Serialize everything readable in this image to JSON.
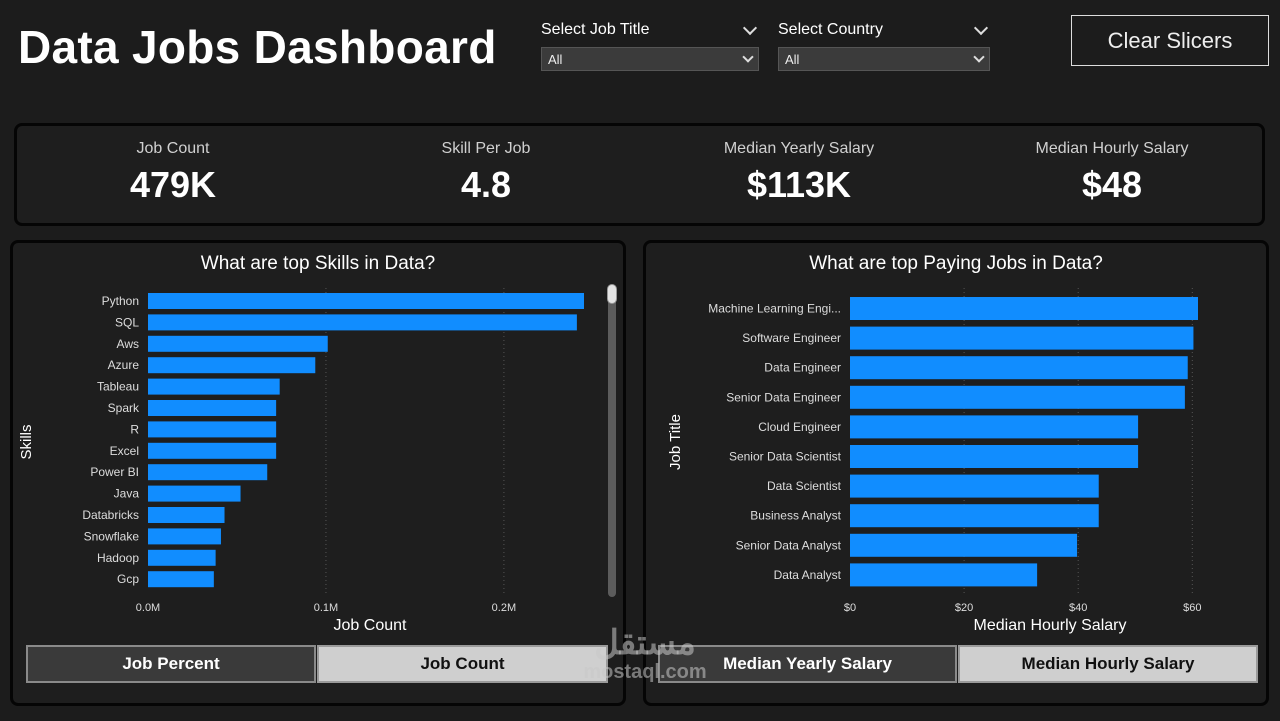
{
  "header": {
    "title": "Data Jobs Dashboard",
    "clear_label": "Clear Slicers"
  },
  "slicers": [
    {
      "label": "Select Job Title",
      "value": "All"
    },
    {
      "label": "Select Country",
      "value": "All"
    }
  ],
  "kpis": [
    {
      "label": "Job Count",
      "value": "479K"
    },
    {
      "label": "Skill Per Job",
      "value": "4.8"
    },
    {
      "label": "Median Yearly Salary",
      "value": "$113K"
    },
    {
      "label": "Median Hourly Salary",
      "value": "$48"
    }
  ],
  "colors": {
    "bar": "#118dff",
    "background": "#1c1c1c"
  },
  "chart_data": [
    {
      "type": "bar",
      "orientation": "horizontal",
      "title": "What are top Skills in Data?",
      "xlabel": "Job Count",
      "ylabel": "Skills",
      "categories": [
        "Python",
        "SQL",
        "Aws",
        "Azure",
        "Tableau",
        "Spark",
        "R",
        "Excel",
        "Power BI",
        "Java",
        "Databricks",
        "Snowflake",
        "Hadoop",
        "Gcp"
      ],
      "values": [
        245000,
        241000,
        101000,
        94000,
        74000,
        72000,
        72000,
        72000,
        67000,
        52000,
        43000,
        41000,
        38000,
        37000
      ],
      "xticks": [
        "0.0M",
        "0.1M",
        "0.2M"
      ],
      "xtick_values": [
        0,
        100000,
        200000
      ],
      "xlim": [
        0,
        245000
      ],
      "grid": true
    },
    {
      "type": "bar",
      "orientation": "horizontal",
      "title": "What are top Paying Jobs in Data?",
      "xlabel": "Median Hourly Salary",
      "ylabel": "Job Title",
      "categories": [
        "Machine Learning Engi...",
        "Software Engineer",
        "Data Engineer",
        "Senior Data Engineer",
        "Cloud Engineer",
        "Senior Data Scientist",
        "Data Scientist",
        "Business Analyst",
        "Senior Data Analyst",
        "Data Analyst"
      ],
      "values": [
        61,
        60.2,
        59.2,
        58.7,
        50.5,
        50.5,
        43.6,
        43.6,
        39.8,
        32.8
      ],
      "xticks": [
        "$0",
        "$20",
        "$40",
        "$60"
      ],
      "xtick_values": [
        0,
        20,
        40,
        60
      ],
      "xlim": [
        0,
        61
      ],
      "grid": true
    }
  ],
  "toggles_left": [
    "Job Percent",
    "Job Count"
  ],
  "toggles_right": [
    "Median Yearly Salary",
    "Median Hourly Salary"
  ],
  "watermark": {
    "logo": "مستقل",
    "url": "mostaql.com"
  }
}
